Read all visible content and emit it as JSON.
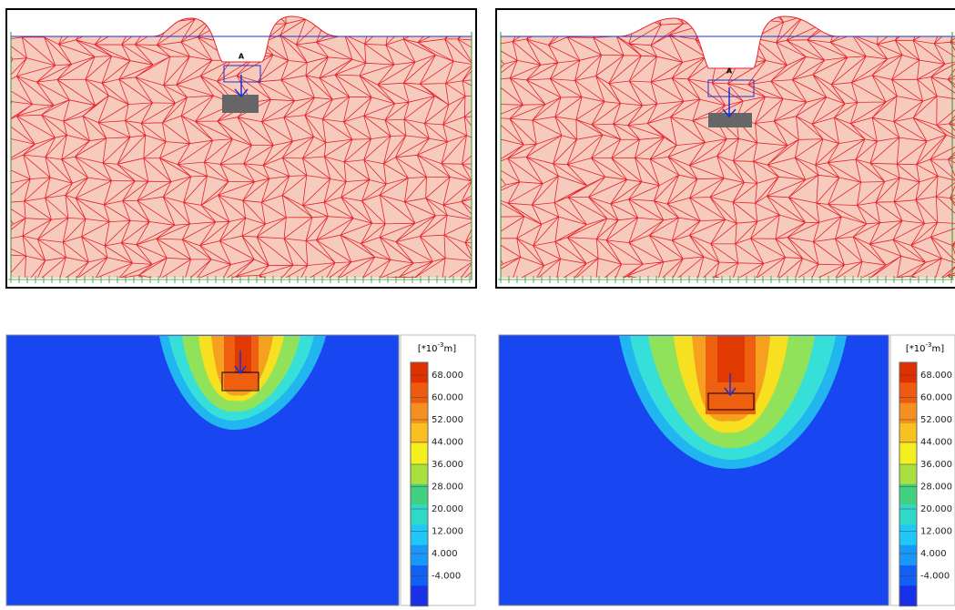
{
  "mesh_panels": [
    {
      "label": "A"
    },
    {
      "label": "A"
    }
  ],
  "legend": {
    "unit": {
      "base": "[*10",
      "exponent": "-3",
      "suffix": "m]"
    },
    "ticks": [
      "68.000",
      "60.000",
      "52.000",
      "44.000",
      "36.000",
      "28.000",
      "20.000",
      "12.000",
      "4.000",
      "-4.000"
    ]
  }
}
